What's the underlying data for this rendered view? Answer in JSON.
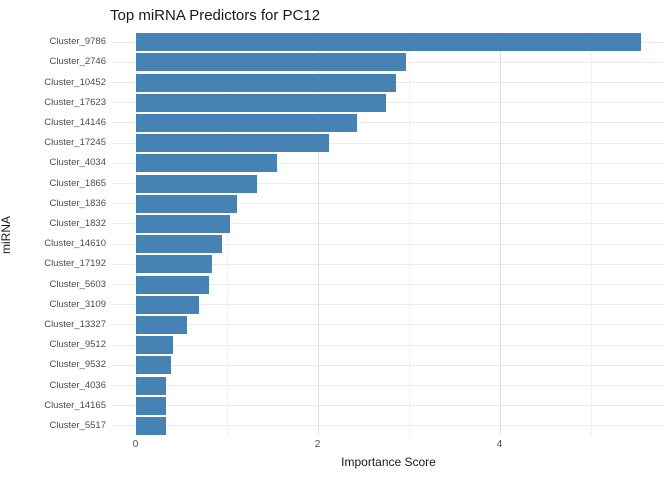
{
  "title": "Top miRNA Predictors for PC12",
  "colors": {
    "bar": "#4682B4",
    "grid_major": "#e2e2e2",
    "grid_minor": "#f0f0f0",
    "grid_horizontal": "#ebebeb",
    "tick_label": "#4d4d4d",
    "text": "#1a1a1a",
    "background": "#ffffff"
  },
  "chart_data": {
    "type": "bar",
    "orientation": "horizontal",
    "title": "Top miRNA Predictors for PC12",
    "xlabel": "Importance Score",
    "ylabel": "miRNA",
    "categories": [
      "Cluster_9786",
      "Cluster_2746",
      "Cluster_10452",
      "Cluster_17623",
      "Cluster_14146",
      "Cluster_17245",
      "Cluster_4034",
      "Cluster_1865",
      "Cluster_1836",
      "Cluster_1832",
      "Cluster_14610",
      "Cluster_17192",
      "Cluster_5603",
      "Cluster_3109",
      "Cluster_13327",
      "Cluster_9512",
      "Cluster_9532",
      "Cluster_4036",
      "Cluster_14165",
      "Cluster_5517"
    ],
    "values": [
      5.55,
      2.97,
      2.86,
      2.75,
      2.43,
      2.13,
      1.55,
      1.33,
      1.12,
      1.04,
      0.95,
      0.84,
      0.81,
      0.7,
      0.57,
      0.41,
      0.39,
      0.34,
      0.335,
      0.33
    ],
    "xlim": [
      -0.28,
      5.83
    ],
    "x_ticks": [
      0,
      2,
      4
    ],
    "x_gridlines_major": [
      0,
      2,
      4
    ],
    "x_gridlines_minor": [
      1,
      3,
      5
    ],
    "grid": true,
    "legend": false,
    "bar_color": "#4682B4"
  }
}
